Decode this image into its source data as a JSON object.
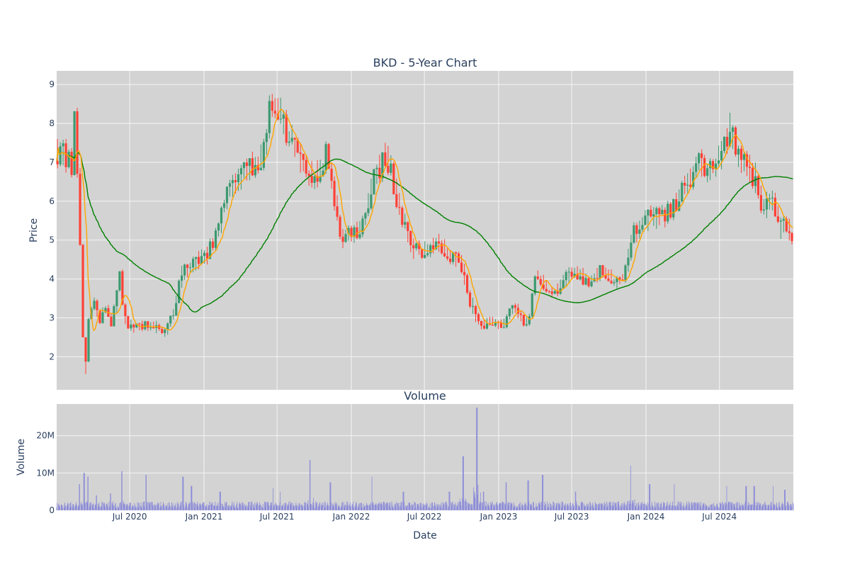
{
  "colors": {
    "plot_bg": "#d3d3d3",
    "grid": "#f4f4f4",
    "up": "#3d9970",
    "down": "#ff4136",
    "ma_short": "#ffa500",
    "ma_long": "#008000",
    "volume": "#8c8cd9"
  },
  "chart_data": [
    {
      "type": "candlestick",
      "title": "BKD - 5-Year Chart",
      "ylabel": "Price",
      "ylim": [
        1.15,
        9.35
      ],
      "yticks": [
        "2",
        "3",
        "4",
        "5",
        "6",
        "7",
        "8",
        "9"
      ],
      "ytick_values": [
        2,
        3,
        4,
        5,
        6,
        7,
        8,
        9
      ],
      "x_range": [
        "2020-01-02",
        "2024-12-31"
      ],
      "grid": true,
      "series": [
        {
          "type": "candlestick",
          "up_color": "#3d9970",
          "down_color": "#ff4136"
        },
        {
          "type": "line",
          "color": "#ffa500"
        },
        {
          "type": "line",
          "color": "#008000"
        }
      ],
      "price_anchors": [
        [
          "2020-01-02",
          7.3
        ],
        [
          "2020-01-20",
          7.2
        ],
        [
          "2020-02-05",
          7.0
        ],
        [
          "2020-02-15",
          6.8
        ],
        [
          "2020-02-20",
          8.3
        ],
        [
          "2020-02-28",
          6.5
        ],
        [
          "2020-03-05",
          4.3
        ],
        [
          "2020-03-12",
          2.2
        ],
        [
          "2020-03-16",
          1.6
        ],
        [
          "2020-03-23",
          2.8
        ],
        [
          "2020-04-05",
          3.6
        ],
        [
          "2020-04-20",
          2.9
        ],
        [
          "2020-05-05",
          3.3
        ],
        [
          "2020-05-20",
          2.9
        ],
        [
          "2020-06-01",
          3.5
        ],
        [
          "2020-06-10",
          4.1
        ],
        [
          "2020-06-22",
          3.0
        ],
        [
          "2020-07-10",
          2.7
        ],
        [
          "2020-08-01",
          2.8
        ],
        [
          "2020-09-01",
          2.8
        ],
        [
          "2020-10-01",
          2.6
        ],
        [
          "2020-10-20",
          3.1
        ],
        [
          "2020-11-10",
          4.2
        ],
        [
          "2020-12-01",
          4.3
        ],
        [
          "2021-01-05",
          4.6
        ],
        [
          "2021-02-01",
          5.0
        ],
        [
          "2021-03-01",
          6.2
        ],
        [
          "2021-04-01",
          6.6
        ],
        [
          "2021-05-01",
          6.9
        ],
        [
          "2021-06-01",
          7.2
        ],
        [
          "2021-06-20",
          8.6
        ],
        [
          "2021-07-15",
          8.2
        ],
        [
          "2021-08-05",
          7.6
        ],
        [
          "2021-09-01",
          7.0
        ],
        [
          "2021-10-01",
          6.6
        ],
        [
          "2021-11-05",
          7.2
        ],
        [
          "2021-11-20",
          6.2
        ],
        [
          "2021-12-10",
          5.0
        ],
        [
          "2022-01-05",
          5.2
        ],
        [
          "2022-02-01",
          5.3
        ],
        [
          "2022-03-01",
          6.6
        ],
        [
          "2022-04-01",
          7.2
        ],
        [
          "2022-04-20",
          6.4
        ],
        [
          "2022-05-10",
          5.5
        ],
        [
          "2022-06-01",
          4.8
        ],
        [
          "2022-07-01",
          4.7
        ],
        [
          "2022-08-01",
          5.0
        ],
        [
          "2022-09-01",
          4.6
        ],
        [
          "2022-10-01",
          4.5
        ],
        [
          "2022-10-20",
          3.6
        ],
        [
          "2022-11-15",
          2.8
        ],
        [
          "2022-12-15",
          2.9
        ],
        [
          "2023-01-15",
          2.8
        ],
        [
          "2023-02-10",
          3.3
        ],
        [
          "2023-03-05",
          2.9
        ],
        [
          "2023-03-20",
          3.0
        ],
        [
          "2023-04-05",
          4.1
        ],
        [
          "2023-05-01",
          3.8
        ],
        [
          "2023-05-20",
          3.6
        ],
        [
          "2023-06-15",
          4.0
        ],
        [
          "2023-07-15",
          4.2
        ],
        [
          "2023-08-15",
          3.9
        ],
        [
          "2023-09-15",
          4.2
        ],
        [
          "2023-10-15",
          4.0
        ],
        [
          "2023-11-10",
          3.9
        ],
        [
          "2023-12-01",
          5.1
        ],
        [
          "2024-01-15",
          5.6
        ],
        [
          "2024-02-15",
          5.6
        ],
        [
          "2024-03-15",
          5.9
        ],
        [
          "2024-04-15",
          6.5
        ],
        [
          "2024-05-15",
          7.0
        ],
        [
          "2024-06-15",
          6.7
        ],
        [
          "2024-07-15",
          7.4
        ],
        [
          "2024-07-30",
          7.9
        ],
        [
          "2024-08-20",
          7.1
        ],
        [
          "2024-09-15",
          6.8
        ],
        [
          "2024-10-05",
          6.5
        ],
        [
          "2024-10-20",
          5.8
        ],
        [
          "2024-11-10",
          6.1
        ],
        [
          "2024-12-01",
          5.3
        ],
        [
          "2024-12-15",
          5.5
        ],
        [
          "2024-12-31",
          5.0
        ]
      ]
    },
    {
      "type": "bar",
      "title": "Volume",
      "ylabel": "Volume",
      "xlabel": "Date",
      "ylim": [
        0,
        28500000
      ],
      "yticks": [
        "0",
        "10M",
        "20M"
      ],
      "ytick_values": [
        0,
        10000000,
        20000000
      ],
      "xticks": [
        "Jul 2020",
        "Jan 2021",
        "Jul 2021",
        "Jan 2022",
        "Jul 2022",
        "Jan 2023",
        "Jul 2023",
        "Jan 2024",
        "Jul 2024"
      ],
      "xtick_dates": [
        "2020-07-01",
        "2021-01-01",
        "2021-07-01",
        "2022-01-01",
        "2022-07-01",
        "2023-01-01",
        "2023-07-01",
        "2024-01-01",
        "2024-07-01"
      ],
      "grid": true,
      "baseline_volume": 1500000,
      "volume_spikes": [
        [
          "2020-02-28",
          7000000
        ],
        [
          "2020-03-10",
          10000000
        ],
        [
          "2020-03-20",
          9000000
        ],
        [
          "2020-04-10",
          4000000
        ],
        [
          "2020-05-15",
          4500000
        ],
        [
          "2020-06-12",
          10500000
        ],
        [
          "2020-08-10",
          9500000
        ],
        [
          "2020-11-10",
          9000000
        ],
        [
          "2020-12-01",
          6500000
        ],
        [
          "2021-02-10",
          5000000
        ],
        [
          "2021-06-20",
          6000000
        ],
        [
          "2021-07-10",
          5000000
        ],
        [
          "2021-09-20",
          13500000
        ],
        [
          "2021-11-10",
          7500000
        ],
        [
          "2022-02-20",
          9000000
        ],
        [
          "2022-05-10",
          5000000
        ],
        [
          "2022-09-01",
          5000000
        ],
        [
          "2022-10-05",
          14500000
        ],
        [
          "2022-11-08",
          27500000
        ],
        [
          "2022-11-25",
          5000000
        ],
        [
          "2023-01-20",
          7500000
        ],
        [
          "2023-03-15",
          8000000
        ],
        [
          "2023-04-20",
          9500000
        ],
        [
          "2023-07-10",
          5000000
        ],
        [
          "2023-11-25",
          12000000
        ],
        [
          "2024-01-10",
          7000000
        ],
        [
          "2024-03-10",
          7000000
        ],
        [
          "2024-07-20",
          6500000
        ],
        [
          "2024-09-05",
          6500000
        ],
        [
          "2024-09-25",
          6500000
        ],
        [
          "2024-11-10",
          6500000
        ],
        [
          "2024-12-10",
          5500000
        ]
      ]
    }
  ]
}
